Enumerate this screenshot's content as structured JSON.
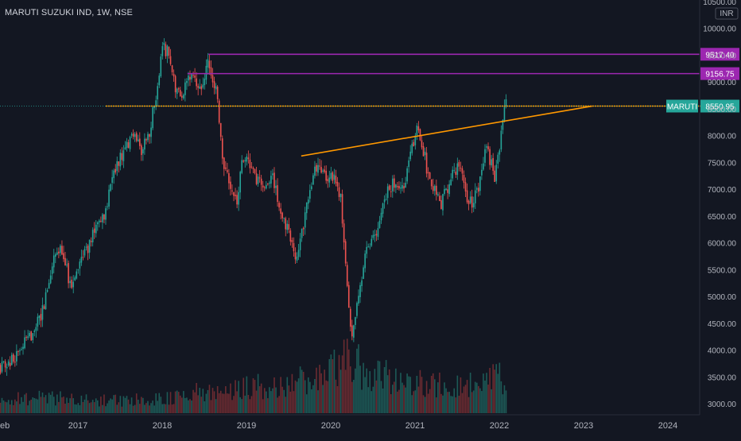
{
  "header": {
    "title": "MARUTI SUZUKI IND, 1W, NSE"
  },
  "currency": "INR",
  "symbol_tag": "MARUTI",
  "colors": {
    "background": "#131722",
    "up": "#26a69a",
    "down": "#ef5350",
    "up_volume": "#1d5a57",
    "down_volume": "#6b2b31",
    "orange": "#ff9800",
    "purple": "#9c27b0",
    "price_tag": "#26a69a",
    "axis_text": "#b2b5be",
    "grid": "#1e222d"
  },
  "chart_data": {
    "type": "candlestick",
    "title": "MARUTI SUZUKI IND, 1W, NSE",
    "ylabel": "INR",
    "ylim": [
      2800,
      10550
    ],
    "xlim": [
      2016.08,
      2024.7
    ],
    "y_ticks": [
      3000,
      3500,
      4000,
      4500,
      5000,
      5500,
      6000,
      6500,
      7000,
      7500,
      8000,
      8500,
      9000,
      9500,
      10000,
      10500
    ],
    "y_tick_labels": [
      "3000.00",
      "3500.00",
      "4000.00",
      "4500.00",
      "5000.00",
      "5500.00",
      "6000.00",
      "6500.00",
      "7000.00",
      "7500.00",
      "8000.00",
      "8500.00",
      "9000.00",
      "9500.00",
      "10000.00",
      "10500.00"
    ],
    "x_ticks": [
      2016.08,
      2017,
      2018,
      2019,
      2020,
      2021,
      2022,
      2023,
      2024
    ],
    "x_tick_labels": [
      "eb",
      "2017",
      "2018",
      "2019",
      "2020",
      "2021",
      "2022",
      "2023",
      "2024"
    ],
    "price_path": [
      [
        2016.08,
        3700
      ],
      [
        2016.25,
        3850
      ],
      [
        2016.45,
        4300
      ],
      [
        2016.6,
        4800
      ],
      [
        2016.72,
        5800
      ],
      [
        2016.82,
        5900
      ],
      [
        2016.92,
        5100
      ],
      [
        2017.05,
        5700
      ],
      [
        2017.2,
        6200
      ],
      [
        2017.32,
        6500
      ],
      [
        2017.4,
        7300
      ],
      [
        2017.55,
        7700
      ],
      [
        2017.65,
        8000
      ],
      [
        2017.75,
        7700
      ],
      [
        2017.85,
        8100
      ],
      [
        2017.95,
        8900
      ],
      [
        2018.0,
        9700
      ],
      [
        2018.08,
        9500
      ],
      [
        2018.15,
        8900
      ],
      [
        2018.25,
        8800
      ],
      [
        2018.35,
        9200
      ],
      [
        2018.45,
        8800
      ],
      [
        2018.55,
        9400
      ],
      [
        2018.65,
        8800
      ],
      [
        2018.72,
        7500
      ],
      [
        2018.8,
        7200
      ],
      [
        2018.88,
        6700
      ],
      [
        2018.95,
        7500
      ],
      [
        2019.0,
        7600
      ],
      [
        2019.1,
        7200
      ],
      [
        2019.2,
        7000
      ],
      [
        2019.3,
        7300
      ],
      [
        2019.4,
        6600
      ],
      [
        2019.5,
        6200
      ],
      [
        2019.58,
        5700
      ],
      [
        2019.68,
        6400
      ],
      [
        2019.78,
        7200
      ],
      [
        2019.85,
        7500
      ],
      [
        2019.95,
        7200
      ],
      [
        2020.05,
        7200
      ],
      [
        2020.12,
        6800
      ],
      [
        2020.18,
        5600
      ],
      [
        2020.25,
        4200
      ],
      [
        2020.32,
        5000
      ],
      [
        2020.42,
        5800
      ],
      [
        2020.5,
        6000
      ],
      [
        2020.58,
        6500
      ],
      [
        2020.67,
        7000
      ],
      [
        2020.75,
        7100
      ],
      [
        2020.85,
        7000
      ],
      [
        2020.95,
        7600
      ],
      [
        2021.02,
        8200
      ],
      [
        2021.08,
        7900
      ],
      [
        2021.15,
        7300
      ],
      [
        2021.22,
        7000
      ],
      [
        2021.3,
        6700
      ],
      [
        2021.38,
        7000
      ],
      [
        2021.45,
        7300
      ],
      [
        2021.52,
        7500
      ],
      [
        2021.6,
        6900
      ],
      [
        2021.67,
        6700
      ],
      [
        2021.75,
        7000
      ],
      [
        2021.8,
        7400
      ],
      [
        2021.85,
        7800
      ],
      [
        2021.9,
        7500
      ],
      [
        2021.95,
        7200
      ],
      [
        2022.0,
        7700
      ],
      [
        2022.04,
        8300
      ],
      [
        2022.08,
        8550
      ]
    ],
    "volume_profile": [
      [
        2016.1,
        0.18
      ],
      [
        2016.5,
        0.22
      ],
      [
        2017.0,
        0.2
      ],
      [
        2017.5,
        0.17
      ],
      [
        2018.0,
        0.22
      ],
      [
        2018.5,
        0.3
      ],
      [
        2019.0,
        0.35
      ],
      [
        2019.5,
        0.42
      ],
      [
        2019.8,
        0.5
      ],
      [
        2020.2,
        0.75
      ],
      [
        2020.4,
        0.6
      ],
      [
        2020.8,
        0.45
      ],
      [
        2021.2,
        0.42
      ],
      [
        2021.6,
        0.4
      ],
      [
        2022.0,
        0.48
      ]
    ],
    "hlines": [
      {
        "value": 9517.4,
        "label": "9517.40",
        "color": "#9c27b0"
      },
      {
        "value": 9156.75,
        "label": "9156.75",
        "color": "#9c27b0"
      },
      {
        "value": 8550.95,
        "label": "",
        "color": "#ff9800"
      }
    ],
    "trendline": {
      "from": [
        2019.65,
        7620
      ],
      "to": [
        2023.1,
        8550
      ],
      "color": "#ff9800"
    },
    "last_price": {
      "value": 8550.95,
      "label": "8550.95"
    }
  }
}
